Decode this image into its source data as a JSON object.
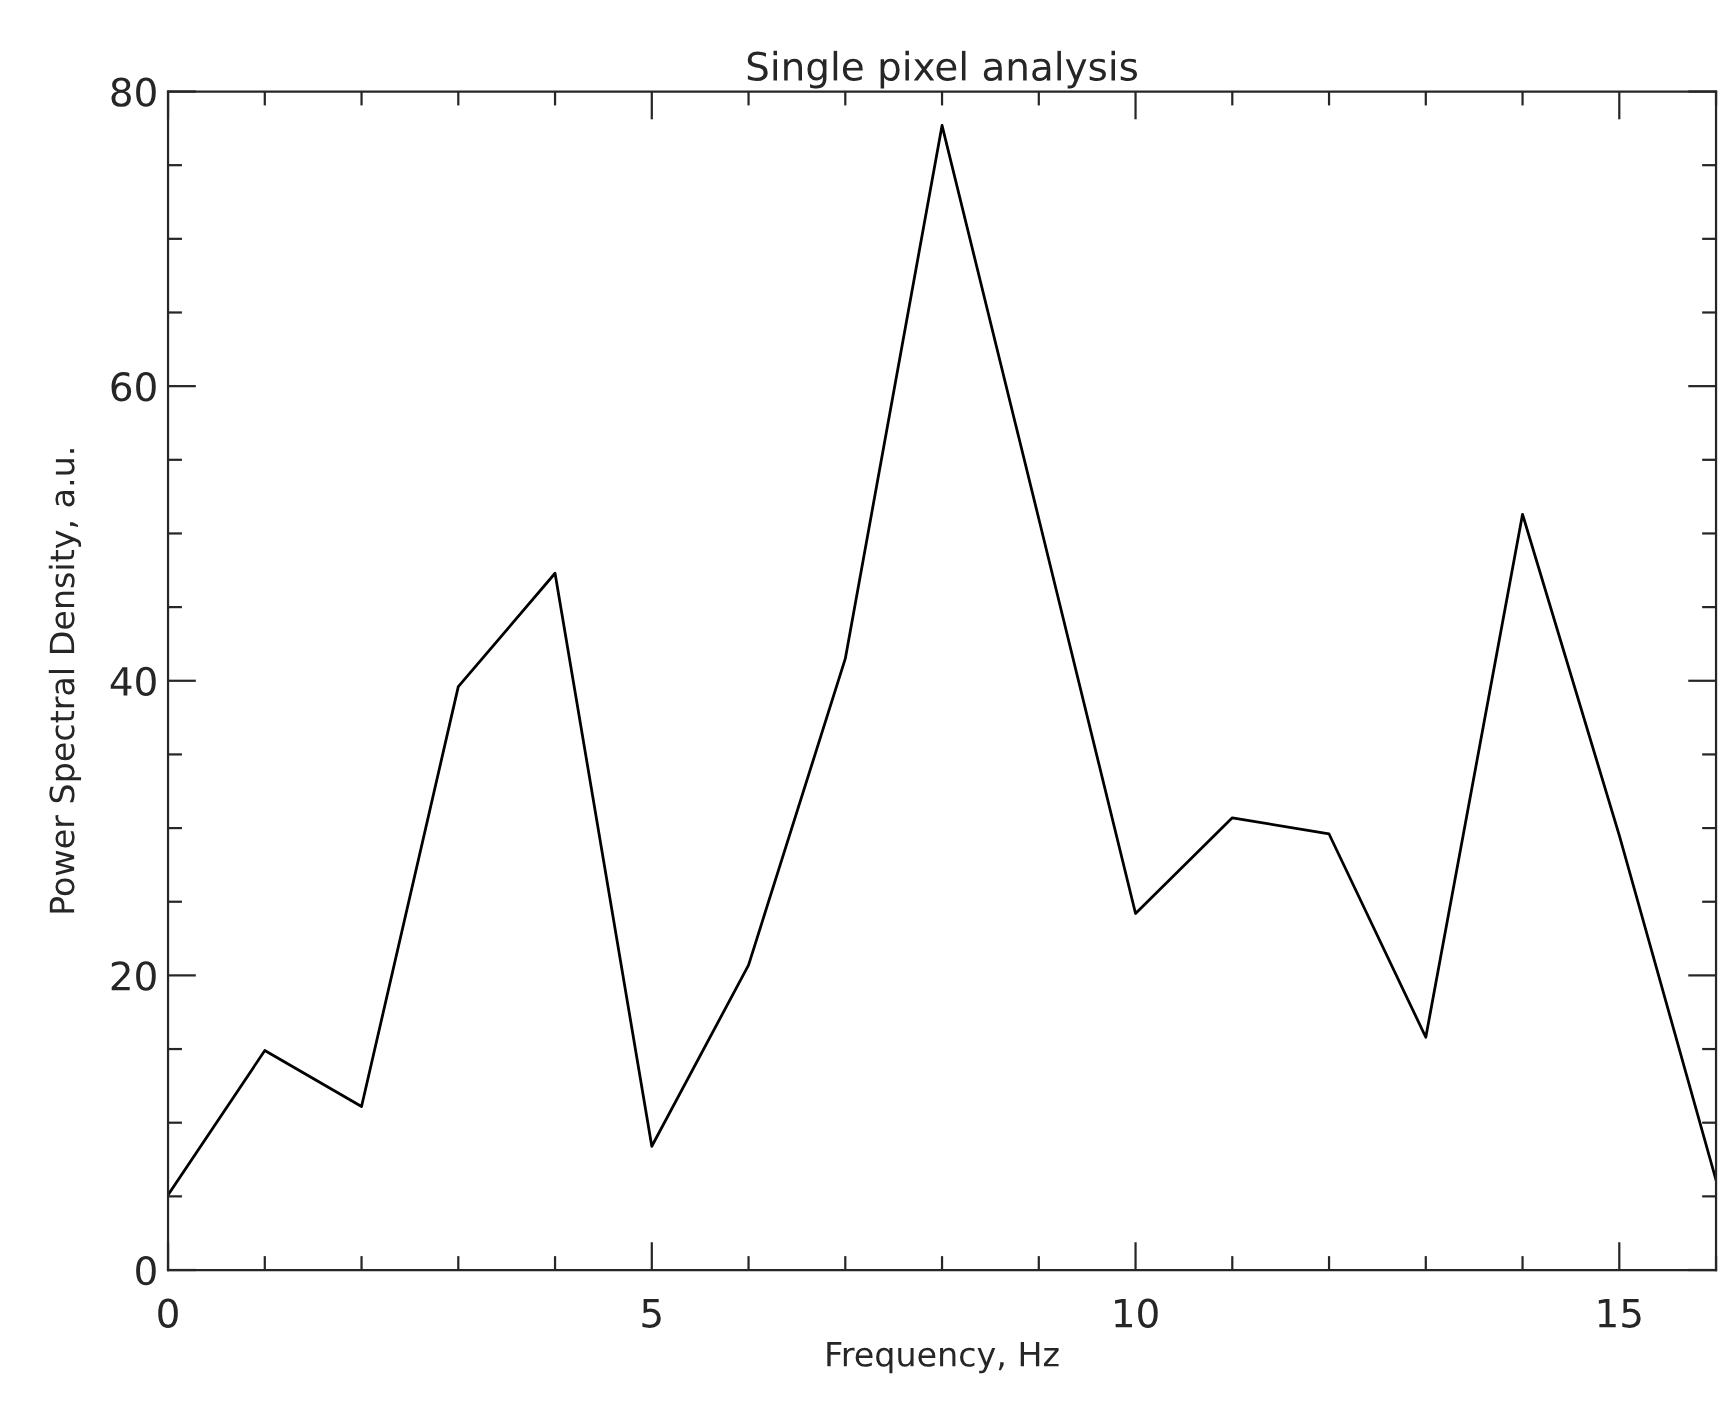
{
  "chart_data": {
    "type": "line",
    "title": "Single pixel analysis",
    "xlabel": "Frequency, Hz",
    "ylabel": "Power Spectral Density, a.u.",
    "x": [
      0,
      1,
      2,
      3,
      4,
      5,
      6,
      7,
      8,
      9,
      10,
      11,
      12,
      13,
      14,
      15,
      16
    ],
    "series": [
      {
        "color": "#000000",
        "values": [
          5.1,
          14.9,
          11.1,
          39.6,
          47.3,
          8.4,
          20.7,
          41.5,
          77.7,
          51,
          24.2,
          30.7,
          29.6,
          15.8,
          51.3,
          29.5,
          6.1
        ]
      }
    ],
    "xlim": [
      0,
      16
    ],
    "xticks": [
      0,
      5,
      10,
      15
    ],
    "ylim": [
      0,
      80
    ],
    "yticks": [
      0,
      20,
      40,
      60,
      80
    ],
    "grid": false,
    "legend": false,
    "marker": "none",
    "line_style": "solid"
  }
}
